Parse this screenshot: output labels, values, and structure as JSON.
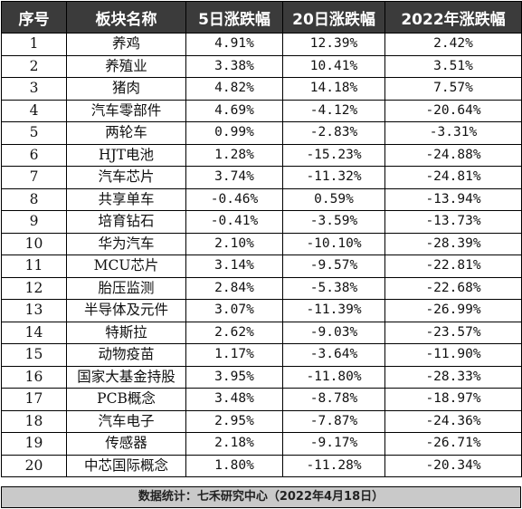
{
  "headers": [
    "序号",
    "板块名称",
    "5日涨跌幅",
    "20日涨跌幅",
    "2022年涨跌幅"
  ],
  "rows": [
    [
      "1",
      "养鸡",
      "4.91%",
      "12.39%",
      "2.42%"
    ],
    [
      "2",
      "养殖业",
      "3.38%",
      "10.41%",
      "3.51%"
    ],
    [
      "3",
      "猪肉",
      "4.82%",
      "14.18%",
      "7.57%"
    ],
    [
      "4",
      "汽车零部件",
      "4.69%",
      "-4.12%",
      "-20.64%"
    ],
    [
      "5",
      "两轮车",
      "0.99%",
      "-2.83%",
      "-3.31%"
    ],
    [
      "6",
      "HJT电池",
      "1.28%",
      "-15.23%",
      "-24.88%"
    ],
    [
      "7",
      "汽车芯片",
      "3.74%",
      "-11.32%",
      "-24.81%"
    ],
    [
      "8",
      "共享单车",
      "-0.46%",
      "0.59%",
      "-13.94%"
    ],
    [
      "9",
      "培育钻石",
      "-0.41%",
      "-3.59%",
      "-13.73%"
    ],
    [
      "10",
      "华为汽车",
      "2.10%",
      "-10.10%",
      "-28.39%"
    ],
    [
      "11",
      "MCU芯片",
      "3.14%",
      "-9.57%",
      "-22.81%"
    ],
    [
      "12",
      "胎压监测",
      "2.84%",
      "-5.38%",
      "-22.68%"
    ],
    [
      "13",
      "半导体及元件",
      "3.07%",
      "-11.39%",
      "-26.99%"
    ],
    [
      "14",
      "特斯拉",
      "2.62%",
      "-9.03%",
      "-23.57%"
    ],
    [
      "15",
      "动物疫苗",
      "1.17%",
      "-3.64%",
      "-11.90%"
    ],
    [
      "16",
      "国家大基金持股",
      "3.95%",
      "-11.80%",
      "-28.33%"
    ],
    [
      "17",
      "PCB概念",
      "3.48%",
      "-8.78%",
      "-18.97%"
    ],
    [
      "18",
      "汽车电子",
      "2.95%",
      "-7.87%",
      "-24.36%"
    ],
    [
      "19",
      "传感器",
      "2.18%",
      "-9.17%",
      "-26.71%"
    ],
    [
      "20",
      "中芯国际概念",
      "1.80%",
      "-11.28%",
      "-20.34%"
    ]
  ],
  "footer": "数据统计：七禾研究中心（2022年4月18日）",
  "colors": {
    "header_bg": "#3b3b3b",
    "header_text": "#ffffff",
    "footer_bg": "#c9c9c9",
    "border": "#000000"
  }
}
